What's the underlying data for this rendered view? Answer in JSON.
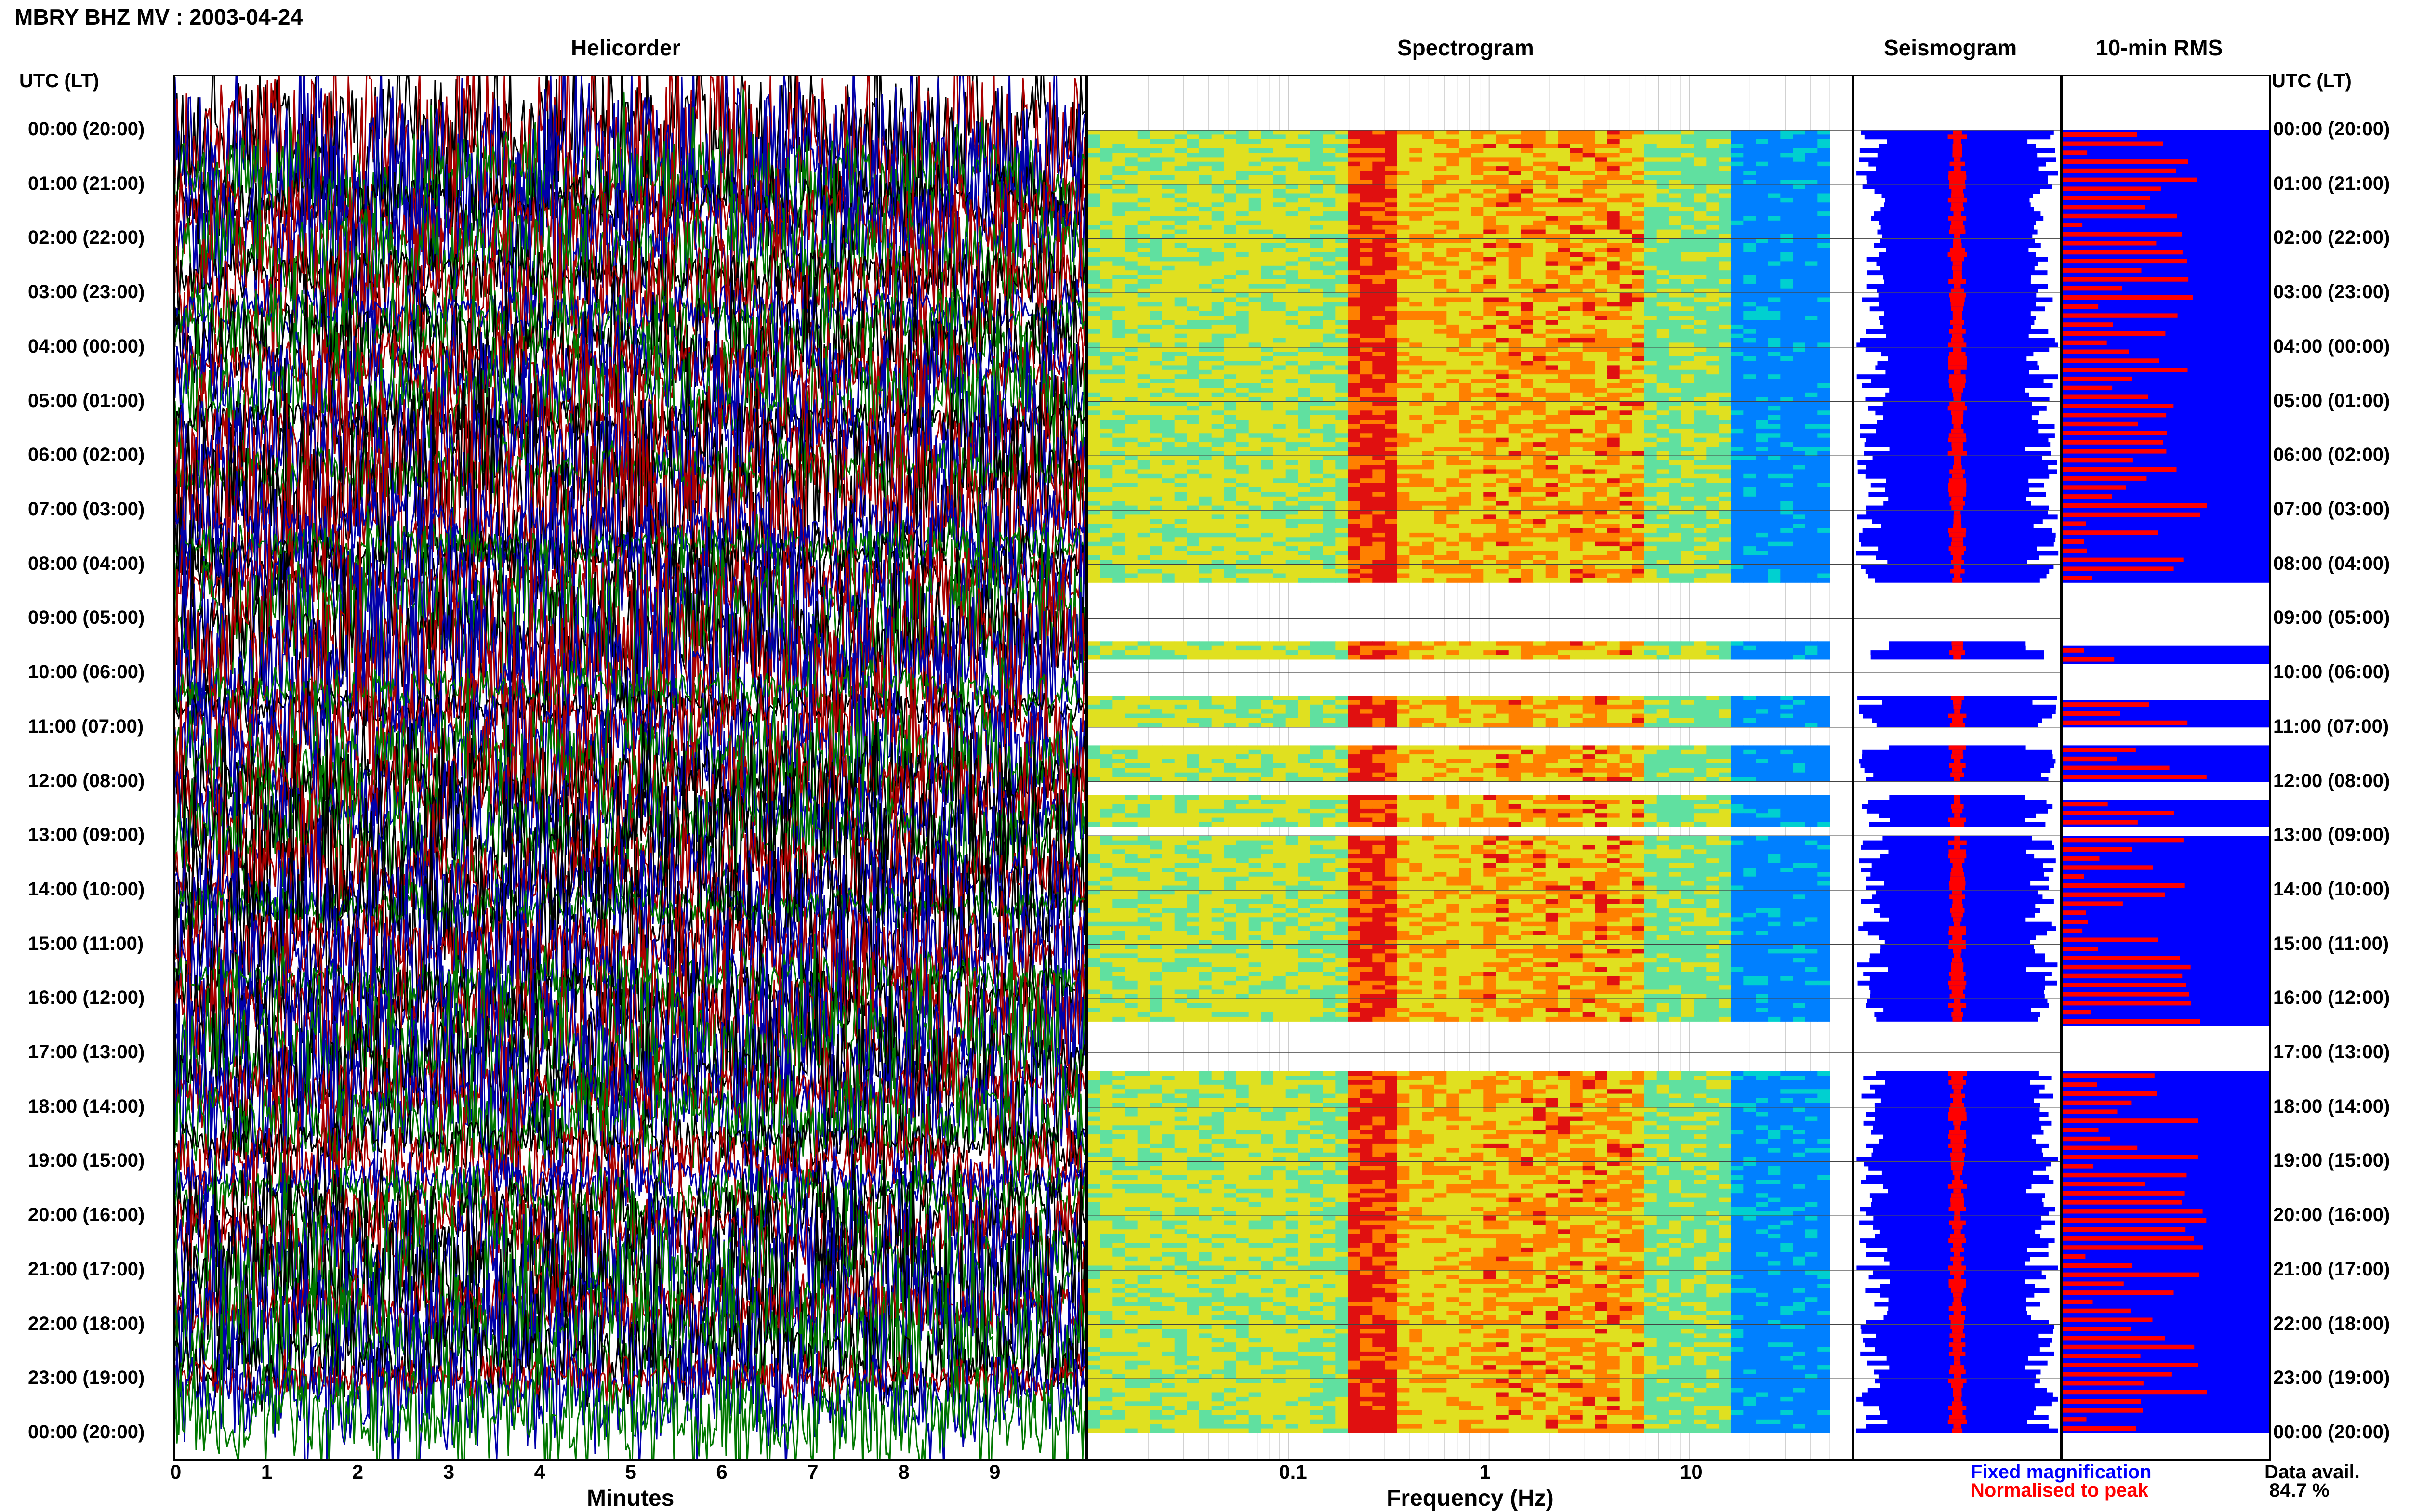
{
  "header": {
    "title": "MBRY BHZ MV : 2003-04-24"
  },
  "panels": {
    "helicorder": "Helicorder",
    "spectrogram": "Spectrogram",
    "seismogram": "Seismogram",
    "rms": "10-min RMS"
  },
  "axis": {
    "utc_left": "UTC (LT)",
    "utc_right": "UTC (LT)",
    "minutes_label": "Minutes",
    "frequency_label": "Frequency (Hz)"
  },
  "legend": {
    "fixed": "Fixed magnification",
    "normalised": "Normalised to peak",
    "fixed_color": "#0000ff",
    "normalised_color": "#ff0000"
  },
  "data_availability": {
    "label": "Data avail.",
    "value": "84.7 %"
  },
  "chart_data": {
    "type": "heatmap",
    "title": "MBRY BHZ MV : 2003-04-24",
    "time_labels": [
      "00:00 (20:00)",
      "01:00 (21:00)",
      "02:00 (22:00)",
      "03:00 (23:00)",
      "04:00 (00:00)",
      "05:00 (01:00)",
      "06:00 (02:00)",
      "07:00 (03:00)",
      "08:00 (04:00)",
      "09:00 (05:00)",
      "10:00 (06:00)",
      "11:00 (07:00)",
      "12:00 (08:00)",
      "13:00 (09:00)",
      "14:00 (10:00)",
      "15:00 (11:00)",
      "16:00 (12:00)",
      "17:00 (13:00)",
      "18:00 (14:00)",
      "19:00 (15:00)",
      "20:00 (16:00)",
      "21:00 (17:00)",
      "22:00 (18:00)",
      "23:00 (19:00)",
      "00:00 (20:00)"
    ],
    "minute_ticks": [
      "0",
      "1",
      "2",
      "3",
      "4",
      "5",
      "6",
      "7",
      "8",
      "9"
    ],
    "frequency_ticks": [
      "0.1",
      "1",
      "10"
    ],
    "frequency_range_hz": [
      0.01,
      50
    ],
    "data_gaps_hours": [
      [
        8.3,
        9.4
      ],
      [
        9.7,
        10.4
      ],
      [
        10.97,
        11.3
      ],
      [
        11.97,
        12.25
      ],
      [
        12.8,
        13.0
      ],
      [
        16.4,
        17.3
      ]
    ],
    "helicorder_colors": [
      "#000000",
      "#aa0000",
      "#0000aa",
      "#007700"
    ],
    "spectrogram_colors": [
      "#0000aa",
      "#0080ff",
      "#00d0d0",
      "#60e0a0",
      "#e0e020",
      "#ff8000",
      "#e01010"
    ],
    "rms_fixed_color": "#0000ff",
    "rms_normalised_color": "#ff0000",
    "data_available_percent": 84.7
  }
}
